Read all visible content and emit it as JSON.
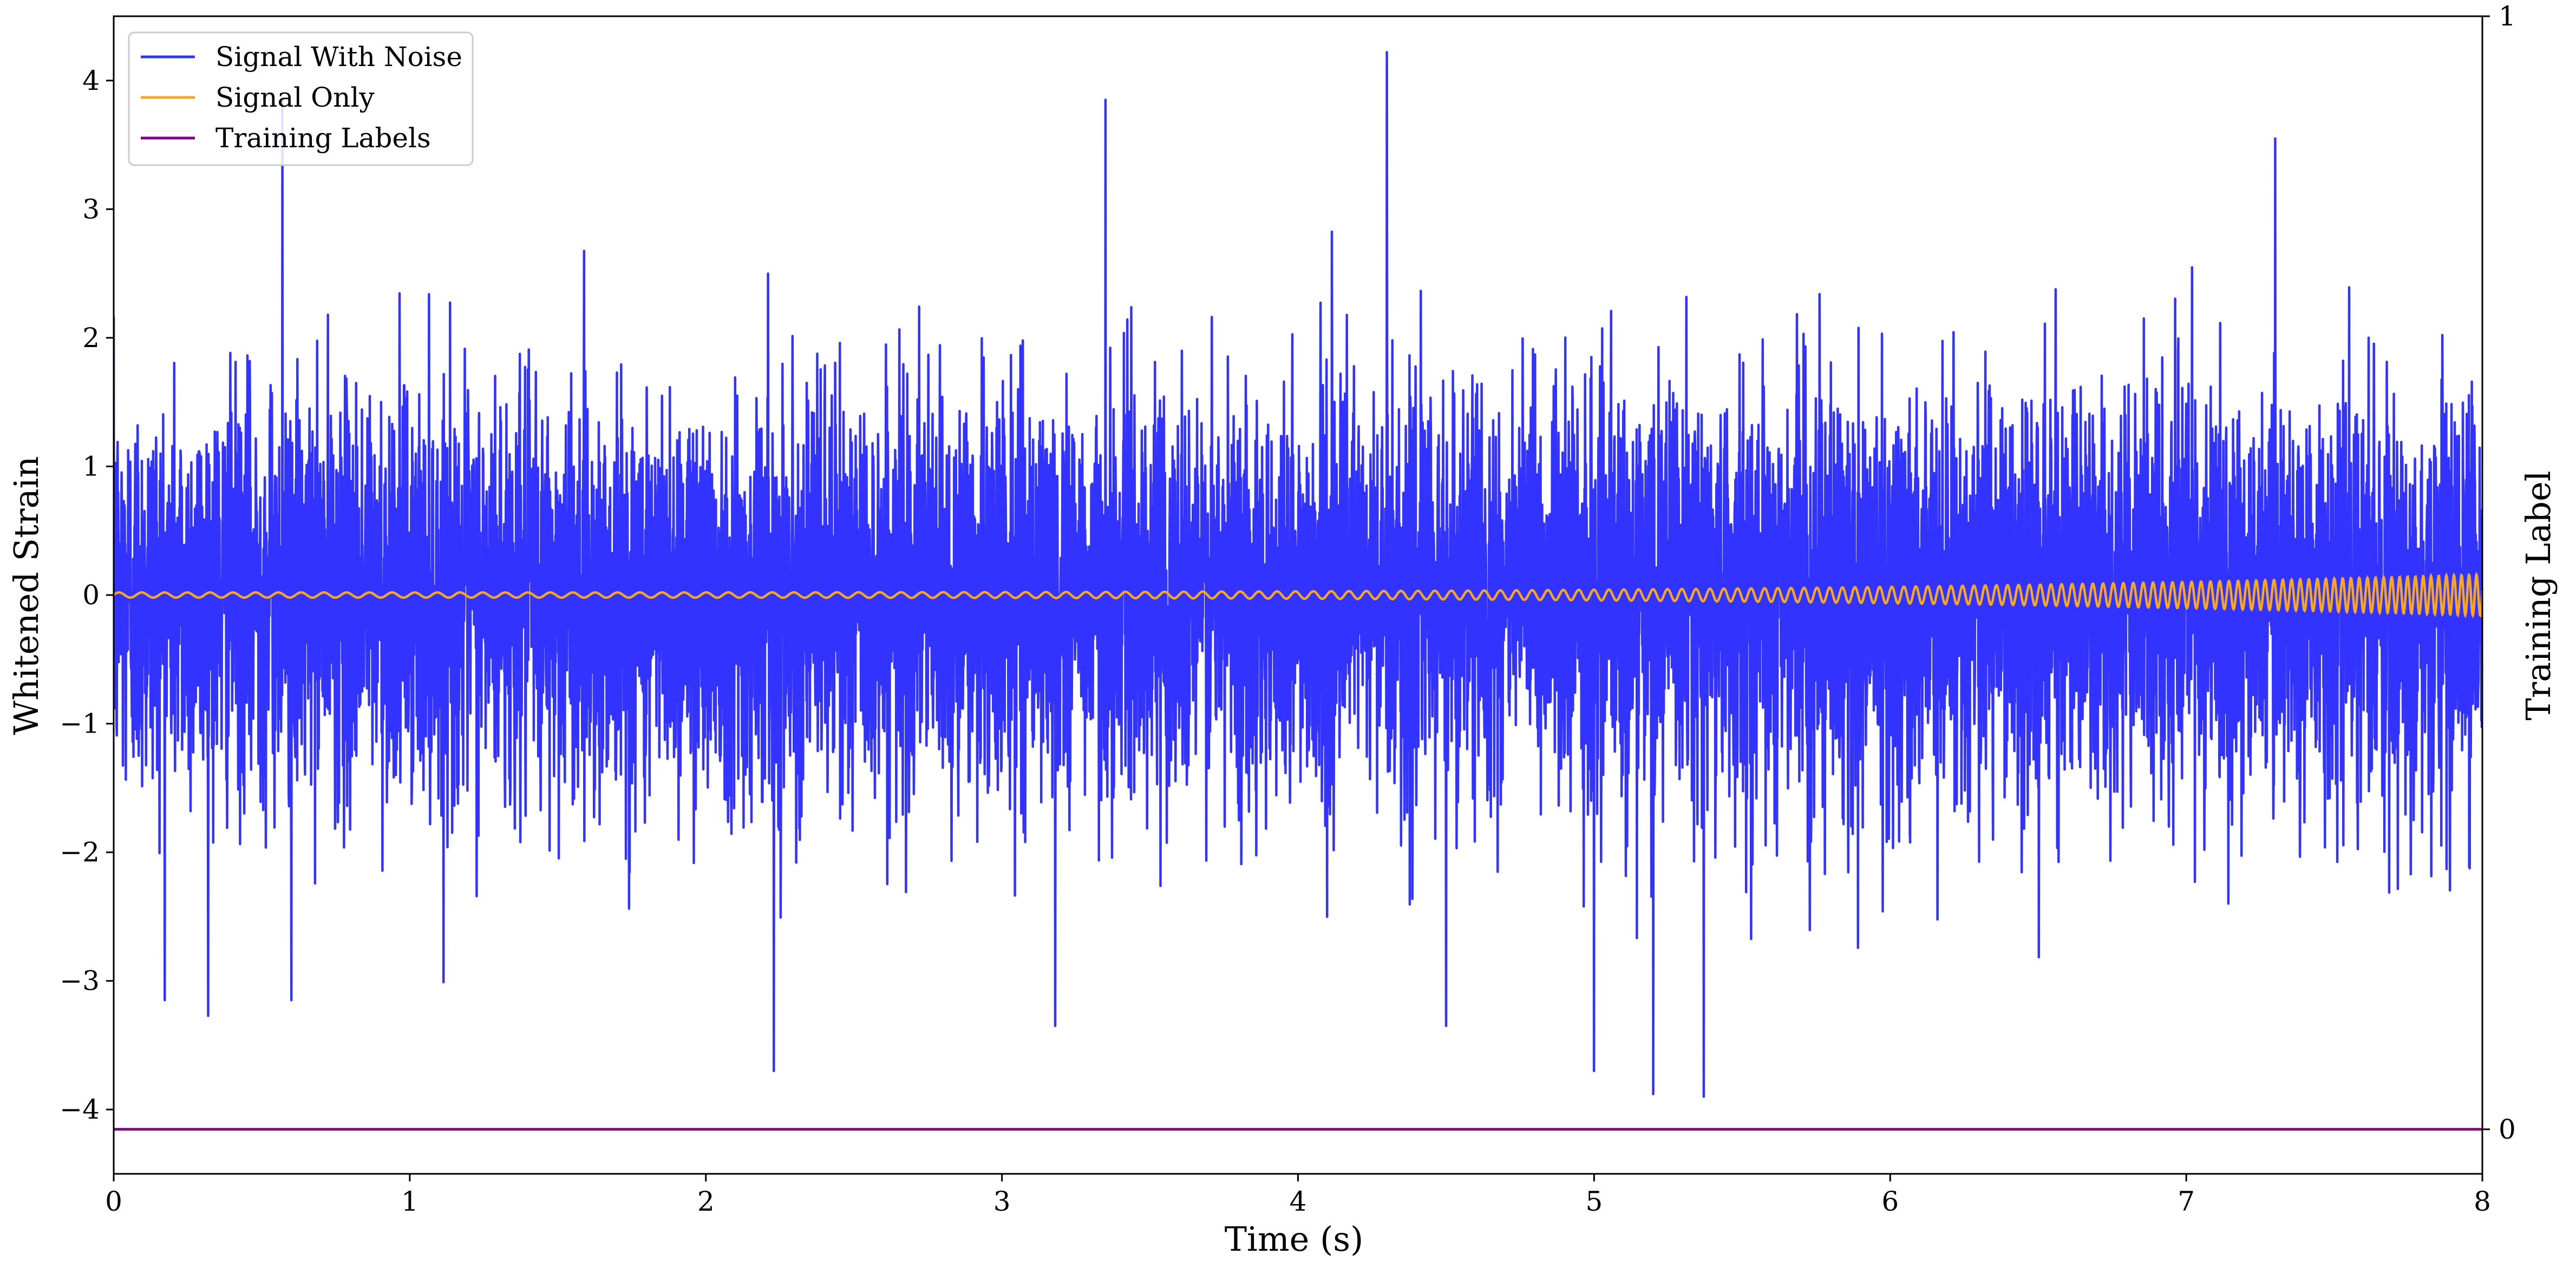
{
  "chart_data": {
    "type": "line",
    "xlabel": "Time (s)",
    "ylabel": "Whitened Strain",
    "y2label": "Training Label",
    "xlim": [
      0,
      8
    ],
    "ylim": [
      -4.5,
      4.5
    ],
    "y2lim": [
      -0.04,
      1.0
    ],
    "xticks": [
      "0",
      "1",
      "2",
      "3",
      "4",
      "5",
      "6",
      "7",
      "8"
    ],
    "yticks": [
      "−4",
      "−3",
      "−2",
      "−1",
      "0",
      "1",
      "2",
      "3",
      "4"
    ],
    "y2ticks": [
      "0",
      "1"
    ],
    "legend": {
      "location": "upper-left"
    },
    "series": [
      {
        "name": "Signal With Noise",
        "color": "#3333ff",
        "axis": "left",
        "description_values": "whitened strain noise, approximately zero-mean with std ~0.8",
        "peaks": [
          {
            "x": 0.57,
            "y": 3.85
          },
          {
            "x": 3.35,
            "y": 3.85
          },
          {
            "x": 4.3,
            "y": 4.22
          },
          {
            "x": 7.3,
            "y": 3.55
          },
          {
            "x": 2.23,
            "y": -3.7
          },
          {
            "x": 5.0,
            "y": -3.7
          },
          {
            "x": 5.2,
            "y": -3.88
          },
          {
            "x": 5.37,
            "y": -3.9
          },
          {
            "x": 0.6,
            "y": -3.15
          },
          {
            "x": 3.18,
            "y": -3.35
          },
          {
            "x": 4.5,
            "y": -3.35
          }
        ]
      },
      {
        "name": "Signal Only",
        "color": "#f5a623",
        "axis": "left",
        "amplitude_start": 0.02,
        "amplitude_end": 0.16,
        "frequency_start_hz": 13,
        "frequency_end_hz": 40
      },
      {
        "name": "Training Labels",
        "color": "#800080",
        "axis": "right",
        "x": [
          0,
          8
        ],
        "y": [
          0,
          0
        ]
      }
    ]
  }
}
